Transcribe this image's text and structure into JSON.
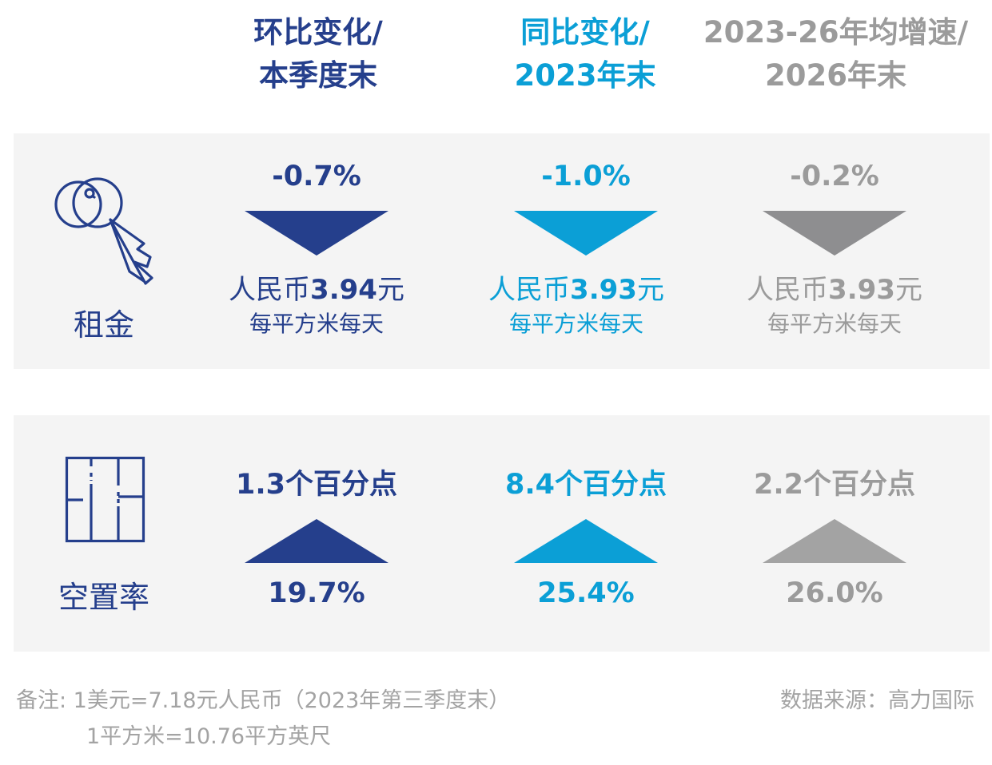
{
  "headers": [
    {
      "line1": "环比变化/",
      "line2": "本季度末"
    },
    {
      "line1": "同比变化/",
      "line2": "2023年末"
    },
    {
      "line1": "2023-26年均增速/",
      "line2": "2026年末"
    }
  ],
  "rent": {
    "label": "租金",
    "icon": "key-icon",
    "columns": [
      {
        "change": "-0.7%",
        "direction": "down",
        "value_prefix": "人民币",
        "value_number": "3.94",
        "value_suffix": "元",
        "unit": "每平方米每天"
      },
      {
        "change": "-1.0%",
        "direction": "down",
        "value_prefix": "人民币",
        "value_number": "3.93",
        "value_suffix": "元",
        "unit": "每平方米每天"
      },
      {
        "change": "-0.2%",
        "direction": "down",
        "value_prefix": "人民币",
        "value_number": "3.93",
        "value_suffix": "元",
        "unit": "每平方米每天"
      }
    ]
  },
  "vacancy": {
    "label": "空置率",
    "icon": "floorplan-icon",
    "columns": [
      {
        "change": "1.3个百分点",
        "direction": "up",
        "value": "19.7%"
      },
      {
        "change": "8.4个百分点",
        "direction": "up",
        "value": "25.4%"
      },
      {
        "change": "2.2个百分点",
        "direction": "up",
        "value": "26.0%"
      }
    ]
  },
  "notes": {
    "line1": "备注: 1美元=7.18元人民币（2023年第三季度末）",
    "line2": "1平方米=10.76平方英尺"
  },
  "source": "数据来源：高力国际",
  "colors": {
    "col1": "#253f8c",
    "col2": "#0b9fd6",
    "col3": "#9b9b9b",
    "panel": "#f4f4f4",
    "arrow3": "#8e8e90"
  }
}
